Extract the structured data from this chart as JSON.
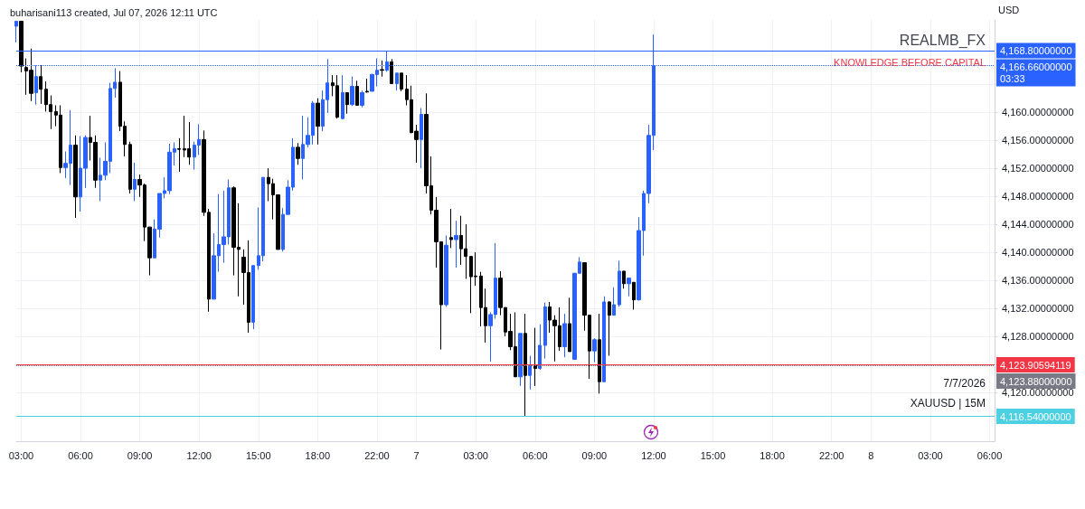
{
  "chart_data": {
    "type": "candlestick",
    "title": "buharisani113 created, Jul 07, 2026 12:11 UTC",
    "ylabel": "USD",
    "annotations": [
      "REALMB_FX",
      "KNOWLEDGE BEFORE CAPITAL",
      "7/7/2026",
      "XAUUSD | 15M"
    ],
    "categories": [
      null,
      "03:00",
      null,
      null,
      null,
      null,
      null,
      null,
      null,
      null,
      null,
      null,
      null,
      "06:00",
      null,
      null,
      null,
      null,
      null,
      null,
      null,
      null,
      null,
      null,
      null,
      "09:00",
      null,
      null,
      null,
      null,
      null,
      null,
      null,
      null,
      null,
      null,
      null,
      "12:00",
      null,
      null,
      null,
      null,
      null,
      null,
      null,
      null,
      null,
      null,
      null,
      "15:00",
      null,
      null,
      null,
      null,
      null,
      null,
      null,
      null,
      null,
      null,
      null,
      "18:00",
      null,
      null,
      null,
      null,
      null,
      null,
      null,
      null,
      null,
      null,
      null,
      "22:00",
      null,
      null,
      null,
      null,
      null,
      null,
      null,
      "7",
      null,
      null,
      null,
      null,
      null,
      null,
      null,
      null,
      null,
      null,
      null,
      "03:00",
      null,
      null,
      null,
      null,
      null,
      null,
      null,
      null,
      null,
      null,
      null,
      "06:00",
      null,
      null,
      null,
      null,
      null,
      null,
      null,
      null,
      null,
      null,
      null,
      "09:00",
      null,
      null,
      null,
      null,
      null,
      null,
      null,
      null,
      null,
      null,
      null,
      "12:00",
      null,
      null,
      null,
      null,
      null,
      null,
      null,
      null,
      null,
      null,
      null,
      "15:00",
      null,
      null,
      null,
      null,
      null,
      null,
      null,
      null,
      null,
      null,
      null,
      "18:00",
      null,
      null,
      null,
      null,
      null,
      null,
      null,
      null,
      null,
      null,
      null,
      "22:00",
      null,
      null,
      null,
      null,
      null,
      null,
      null,
      "8",
      null,
      null,
      null,
      null,
      null,
      null,
      null,
      null,
      null,
      null,
      null,
      "03:00",
      null,
      null,
      null,
      null,
      null,
      null,
      null,
      null,
      null,
      null,
      null,
      "06:00",
      null
    ],
    "ohlc": [
      [
        4172.3,
        4173.0,
        4170.0,
        4173.0
      ],
      [
        4173.0,
        4173.0,
        4165.7,
        4166.6
      ],
      [
        4166.4,
        4167.7,
        4162.5,
        4165.9
      ],
      [
        4166.0,
        4169.1,
        4161.6,
        4162.7
      ],
      [
        4162.8,
        4166.7,
        4161.1,
        4165.1
      ],
      [
        4165.1,
        4166.7,
        4161.2,
        4163.3
      ],
      [
        4163.3,
        4164.4,
        4160.1,
        4161.1
      ],
      [
        4161.1,
        4162.4,
        4157.6,
        4160.1
      ],
      [
        4160.1,
        4161.0,
        4158.0,
        4159.6
      ],
      [
        4159.6,
        4161.0,
        4151.3,
        4152.1
      ],
      [
        4152.1,
        4154.4,
        4150.6,
        4152.7
      ],
      [
        4152.7,
        4160.3,
        4149.6,
        4155.3
      ],
      [
        4155.3,
        4156.7,
        4144.9,
        4147.9
      ],
      [
        4147.9,
        4156.6,
        4145.8,
        4152.0
      ],
      [
        4152.0,
        4156.7,
        4149.2,
        4156.4
      ],
      [
        4156.4,
        4159.5,
        4153.1,
        4155.7
      ],
      [
        4155.7,
        4156.7,
        4149.2,
        4150.3
      ],
      [
        4150.3,
        4153.5,
        4147.3,
        4151.0
      ],
      [
        4151.0,
        4155.7,
        4150.3,
        4153.0
      ],
      [
        4153.0,
        4164.2,
        4151.3,
        4163.4
      ],
      [
        4163.4,
        4166.3,
        4162.1,
        4164.3
      ],
      [
        4164.3,
        4165.9,
        4157.3,
        4158.0
      ],
      [
        4158.0,
        4158.7,
        4153.7,
        4155.4
      ],
      [
        4155.4,
        4155.8,
        4148.4,
        4149.0
      ],
      [
        4149.0,
        4152.8,
        4147.3,
        4150.4
      ],
      [
        4150.4,
        4151.1,
        4147.9,
        4149.6
      ],
      [
        4149.6,
        4149.8,
        4141.6,
        4143.6
      ],
      [
        4143.6,
        4143.6,
        4136.7,
        4139.2
      ],
      [
        4139.2,
        4144.7,
        4139.2,
        4143.3
      ],
      [
        4143.3,
        4148.4,
        4142.1,
        4148.4
      ],
      [
        4148.4,
        4150.7,
        4147.7,
        4148.8
      ],
      [
        4148.8,
        4155.5,
        4148.3,
        4154.3
      ],
      [
        4154.3,
        4155.7,
        4152.4,
        4154.8
      ],
      [
        4154.8,
        4156.3,
        4151.5,
        4154.7
      ],
      [
        4154.8,
        4159.5,
        4153.6,
        4154.6
      ],
      [
        4154.8,
        4158.6,
        4152.5,
        4153.6
      ],
      [
        4153.6,
        4155.8,
        4151.8,
        4155.3
      ],
      [
        4155.3,
        4158.3,
        4153.9,
        4156.1
      ],
      [
        4156.1,
        4157.4,
        4145.2,
        4145.7
      ],
      [
        4145.7,
        4146.2,
        4131.5,
        4133.3
      ],
      [
        4133.3,
        4142.7,
        4133.3,
        4139.5
      ],
      [
        4139.5,
        4148.3,
        4137.2,
        4141.1
      ],
      [
        4141.1,
        4148.8,
        4138.5,
        4142.2
      ],
      [
        4142.2,
        4150.4,
        4141.1,
        4149.2
      ],
      [
        4149.2,
        4149.4,
        4136.7,
        4140.7
      ],
      [
        4140.7,
        4147.0,
        4133.7,
        4140.4
      ],
      [
        4139.3,
        4140.4,
        4132.5,
        4137.1
      ],
      [
        4137.1,
        4141.7,
        4128.5,
        4130.0
      ],
      [
        4130.0,
        4138.1,
        4129.0,
        4138.1
      ],
      [
        4138.1,
        4146.4,
        4137.5,
        4139.5
      ],
      [
        4139.5,
        4150.7,
        4138.7,
        4150.7
      ],
      [
        4150.7,
        4152.0,
        4147.3,
        4149.8
      ],
      [
        4149.8,
        4150.5,
        4144.7,
        4148.2
      ],
      [
        4148.2,
        4148.2,
        4140.4,
        4140.4
      ],
      [
        4140.4,
        4146.3,
        4140.1,
        4145.4
      ],
      [
        4145.4,
        4150.3,
        4145.4,
        4149.3
      ],
      [
        4149.3,
        4156.3,
        4148.8,
        4155.0
      ],
      [
        4155.0,
        4155.6,
        4152.5,
        4153.4
      ],
      [
        4153.4,
        4159.5,
        4150.4,
        4155.4
      ],
      [
        4155.4,
        4159.3,
        4155.0,
        4156.7
      ],
      [
        4156.7,
        4161.6,
        4155.4,
        4161.3
      ],
      [
        4161.3,
        4162.0,
        4155.4,
        4158.0
      ],
      [
        4158.0,
        4163.1,
        4157.3,
        4161.8
      ],
      [
        4161.8,
        4167.6,
        4159.9,
        4164.2
      ],
      [
        4164.2,
        4165.3,
        4162.3,
        4163.8
      ],
      [
        4163.8,
        4165.3,
        4159.1,
        4159.3
      ],
      [
        4159.1,
        4165.3,
        4159.0,
        4162.8
      ],
      [
        4162.8,
        4162.8,
        4159.8,
        4161.1
      ],
      [
        4161.1,
        4165.1,
        4160.9,
        4163.7
      ],
      [
        4163.7,
        4164.5,
        4161.0,
        4161.0
      ],
      [
        4161.0,
        4163.1,
        4160.7,
        4162.8
      ],
      [
        4163.0,
        4164.8,
        4162.8,
        4162.9
      ],
      [
        4163.0,
        4165.5,
        4163.0,
        4165.4
      ],
      [
        4165.4,
        4167.7,
        4163.7,
        4166.0
      ],
      [
        4166.1,
        4167.4,
        4165.1,
        4166.0
      ],
      [
        4166.0,
        4168.8,
        4165.8,
        4167.2
      ],
      [
        4167.2,
        4167.6,
        4164.1,
        4164.1
      ],
      [
        4164.1,
        4165.6,
        4163.1,
        4165.6
      ],
      [
        4165.6,
        4165.6,
        4163.0,
        4163.3
      ],
      [
        4163.3,
        4165.3,
        4161.0,
        4161.8
      ],
      [
        4161.8,
        4163.8,
        4157.0,
        4157.1
      ],
      [
        4157.3,
        4158.2,
        4152.8,
        4156.1
      ],
      [
        4156.1,
        4160.6,
        4152.0,
        4159.7
      ],
      [
        4159.7,
        4162.7,
        4148.4,
        4149.5
      ],
      [
        4149.5,
        4153.7,
        4145.4,
        4146.0
      ],
      [
        4146.0,
        4147.9,
        4137.8,
        4141.5
      ],
      [
        4141.5,
        4141.5,
        4126.1,
        4132.5
      ],
      [
        4132.5,
        4142.4,
        4132.2,
        4141.0
      ],
      [
        4142.1,
        4146.2,
        4140.6,
        4141.8
      ],
      [
        4141.8,
        4144.5,
        4137.8,
        4142.4
      ],
      [
        4142.4,
        4145.2,
        4138.2,
        4140.5
      ],
      [
        4140.5,
        4144.0,
        4136.2,
        4139.4
      ],
      [
        4139.4,
        4139.4,
        4131.3,
        4136.5
      ],
      [
        4136.6,
        4140.0,
        4135.2,
        4136.5
      ],
      [
        4136.6,
        4137.2,
        4129.4,
        4132.1
      ],
      [
        4132.1,
        4134.8,
        4127.1,
        4129.5
      ],
      [
        4129.5,
        4131.4,
        4124.4,
        4131.1
      ],
      [
        4131.1,
        4141.3,
        4130.5,
        4136.3
      ],
      [
        4136.3,
        4137.3,
        4131.0,
        4132.1
      ],
      [
        4132.1,
        4132.1,
        4128.0,
        4128.6
      ],
      [
        4128.7,
        4131.2,
        4126.0,
        4126.5
      ],
      [
        4126.5,
        4131.4,
        4122.2,
        4122.2
      ],
      [
        4122.2,
        4128.4,
        4120.9,
        4128.4
      ],
      [
        4128.4,
        4131.2,
        4116.54,
        4122.4
      ],
      [
        4122.4,
        4125.2,
        4120.4,
        4123.9
      ],
      [
        4123.9,
        4129.2,
        4120.9,
        4123.4
      ],
      [
        4123.4,
        4129.7,
        4123.2,
        4126.7
      ],
      [
        4126.7,
        4132.8,
        4124.8,
        4132.2
      ],
      [
        4132.2,
        4132.9,
        4128.5,
        4130.3
      ],
      [
        4130.3,
        4131.0,
        4124.4,
        4129.5
      ],
      [
        4129.5,
        4132.1,
        4125.9,
        4126.5
      ],
      [
        4126.5,
        4131.2,
        4125.0,
        4129.8
      ],
      [
        4129.8,
        4133.5,
        4125.8,
        4125.8
      ],
      [
        4124.7,
        4137.0,
        4124.7,
        4137.0
      ],
      [
        4137.0,
        4139.3,
        4137.0,
        4138.6
      ],
      [
        4138.5,
        4138.5,
        4128.8,
        4131.0
      ],
      [
        4131.0,
        4131.0,
        4121.9,
        4125.9
      ],
      [
        4125.9,
        4127.7,
        4124.3,
        4127.5
      ],
      [
        4127.5,
        4131.2,
        4119.8,
        4121.5
      ],
      [
        4121.5,
        4133.7,
        4121.5,
        4132.9
      ],
      [
        4132.9,
        4133.0,
        4125.2,
        4131.0
      ],
      [
        4131.0,
        4135.0,
        4131.0,
        4132.5
      ],
      [
        4132.5,
        4138.8,
        4132.2,
        4137.3
      ],
      [
        4137.3,
        4137.3,
        4134.8,
        4135.5
      ],
      [
        4135.5,
        4136.3,
        4133.7,
        4136.3
      ],
      [
        4135.7,
        4135.7,
        4131.8,
        4133.2
      ],
      [
        4133.2,
        4145.0,
        4133.1,
        4143.1
      ],
      [
        4143.1,
        4148.8,
        4139.5,
        4148.4
      ],
      [
        4148.4,
        4158.2,
        4147.0,
        4156.7
      ],
      [
        4156.7,
        4171.1,
        4154.6,
        4166.66
      ],
      null,
      null,
      null,
      null,
      null,
      null,
      null,
      null,
      null,
      null,
      null,
      null,
      null,
      null,
      null,
      null,
      null,
      null,
      null,
      null,
      null,
      null,
      null,
      null,
      null,
      null,
      null,
      null,
      null,
      null,
      null,
      null,
      null,
      null,
      null,
      null,
      null,
      null,
      null,
      null,
      null,
      null,
      null,
      null,
      null,
      null,
      null,
      null,
      null,
      null,
      null,
      null,
      null,
      null,
      null,
      null,
      null,
      null,
      null,
      null,
      null,
      null,
      null,
      null,
      null,
      null,
      null,
      null,
      null
    ],
    "colors": [
      "#2962ff",
      "#000000",
      "#000000",
      "#000000",
      "#2962ff",
      "#000000",
      "#000000",
      "#000000",
      "#000000",
      "#000000",
      "#2962ff",
      "#2962ff",
      "#000000",
      "#2962ff",
      "#2962ff",
      "#000000",
      "#000000",
      "#2962ff",
      "#2962ff",
      "#2962ff",
      "#2962ff",
      "#000000",
      "#000000",
      "#000000",
      "#2962ff",
      "#000000",
      "#000000",
      "#000000",
      "#2962ff",
      "#2962ff",
      "#2962ff",
      "#2962ff",
      "#2962ff",
      "#000000",
      "#000000",
      "#000000",
      "#2962ff",
      "#2962ff",
      "#000000",
      "#000000",
      "#2962ff",
      "#2962ff",
      "#2962ff",
      "#2962ff",
      "#000000",
      "#000000",
      "#000000",
      "#000000",
      "#2962ff",
      "#2962ff",
      "#2962ff",
      "#000000",
      "#000000",
      "#000000",
      "#2962ff",
      "#2962ff",
      "#2962ff",
      "#000000",
      "#2962ff",
      "#2962ff",
      "#2962ff",
      "#000000",
      "#2962ff",
      "#2962ff",
      "#000000",
      "#000000",
      "#2962ff",
      "#000000",
      "#2962ff",
      "#000000",
      "#2962ff",
      "#000000",
      "#2962ff",
      "#2962ff",
      "#000000",
      "#2962ff",
      "#000000",
      "#2962ff",
      "#000000",
      "#000000",
      "#000000",
      "#000000",
      "#2962ff",
      "#000000",
      "#000000",
      "#000000",
      "#000000",
      "#2962ff",
      "#000000",
      "#2962ff",
      "#000000",
      "#000000",
      "#000000",
      "#000000",
      "#000000",
      "#000000",
      "#2962ff",
      "#2962ff",
      "#000000",
      "#000000",
      "#000000",
      "#000000",
      "#2962ff",
      "#000000",
      "#2962ff",
      "#000000",
      "#2962ff",
      "#2962ff",
      "#000000",
      "#000000",
      "#000000",
      "#2962ff",
      "#000000",
      "#2962ff",
      "#2962ff",
      "#000000",
      "#000000",
      "#2962ff",
      "#000000",
      "#2962ff",
      "#000000",
      "#2962ff",
      "#2962ff",
      "#000000",
      "#2962ff",
      "#000000",
      "#2962ff",
      "#2962ff",
      "#2962ff",
      "#2962ff",
      null,
      null,
      null,
      null,
      null,
      null,
      null,
      null,
      null,
      null,
      null,
      null,
      null,
      null,
      null,
      null,
      null,
      null,
      null,
      null,
      null,
      null,
      null,
      null,
      null,
      null,
      null,
      null,
      null,
      null,
      null,
      null,
      null,
      null,
      null,
      null,
      null,
      null,
      null,
      null,
      null,
      null,
      null,
      null,
      null,
      null,
      null,
      null,
      null,
      null,
      null,
      null,
      null,
      null,
      null,
      null,
      null,
      null,
      null,
      null,
      null,
      null,
      null,
      null,
      null,
      null,
      null,
      null,
      null
    ],
    "ylim": [
      4113,
      4173.2
    ],
    "yticks": [
      {
        "value": 4120,
        "label": "4,120.00000000"
      },
      {
        "value": 4124,
        "label": null
      },
      {
        "value": 4128,
        "label": "4,128.00000000"
      },
      {
        "value": 4132,
        "label": "4,132.00000000"
      },
      {
        "value": 4136,
        "label": "4,136.00000000"
      },
      {
        "value": 4140,
        "label": "4,140.00000000"
      },
      {
        "value": 4144,
        "label": "4,144.00000000"
      },
      {
        "value": 4148,
        "label": "4,148.00000000"
      },
      {
        "value": 4152,
        "label": "4,152.00000000"
      },
      {
        "value": 4156,
        "label": "4,156.00000000"
      },
      {
        "value": 4160,
        "label": "4,160.00000000"
      },
      {
        "value": 4164,
        "label": null
      }
    ],
    "ref_lines": [
      {
        "axis": "y",
        "value": 4168.8,
        "label": "4,168.80000000",
        "color": "#2962ff",
        "line_style": "solid"
      },
      {
        "axis": "y",
        "value": 4166.66,
        "label": "4,166.66000000\n03:33",
        "color": "#2962ff",
        "line_style": "dotted"
      },
      {
        "axis": "y",
        "value": 4123.90594119,
        "label": "4,123.90594119",
        "color": "#f23645",
        "line_style": "solid"
      },
      {
        "axis": "y",
        "value": 4123.88,
        "label": "4,123.88000000",
        "color": "#787b86",
        "line_style": "dotted"
      },
      {
        "axis": "y",
        "value": 4116.54,
        "label": "4,116.54000000",
        "color": "#4dd0e1",
        "line_style": "solid"
      }
    ],
    "grid": true
  }
}
